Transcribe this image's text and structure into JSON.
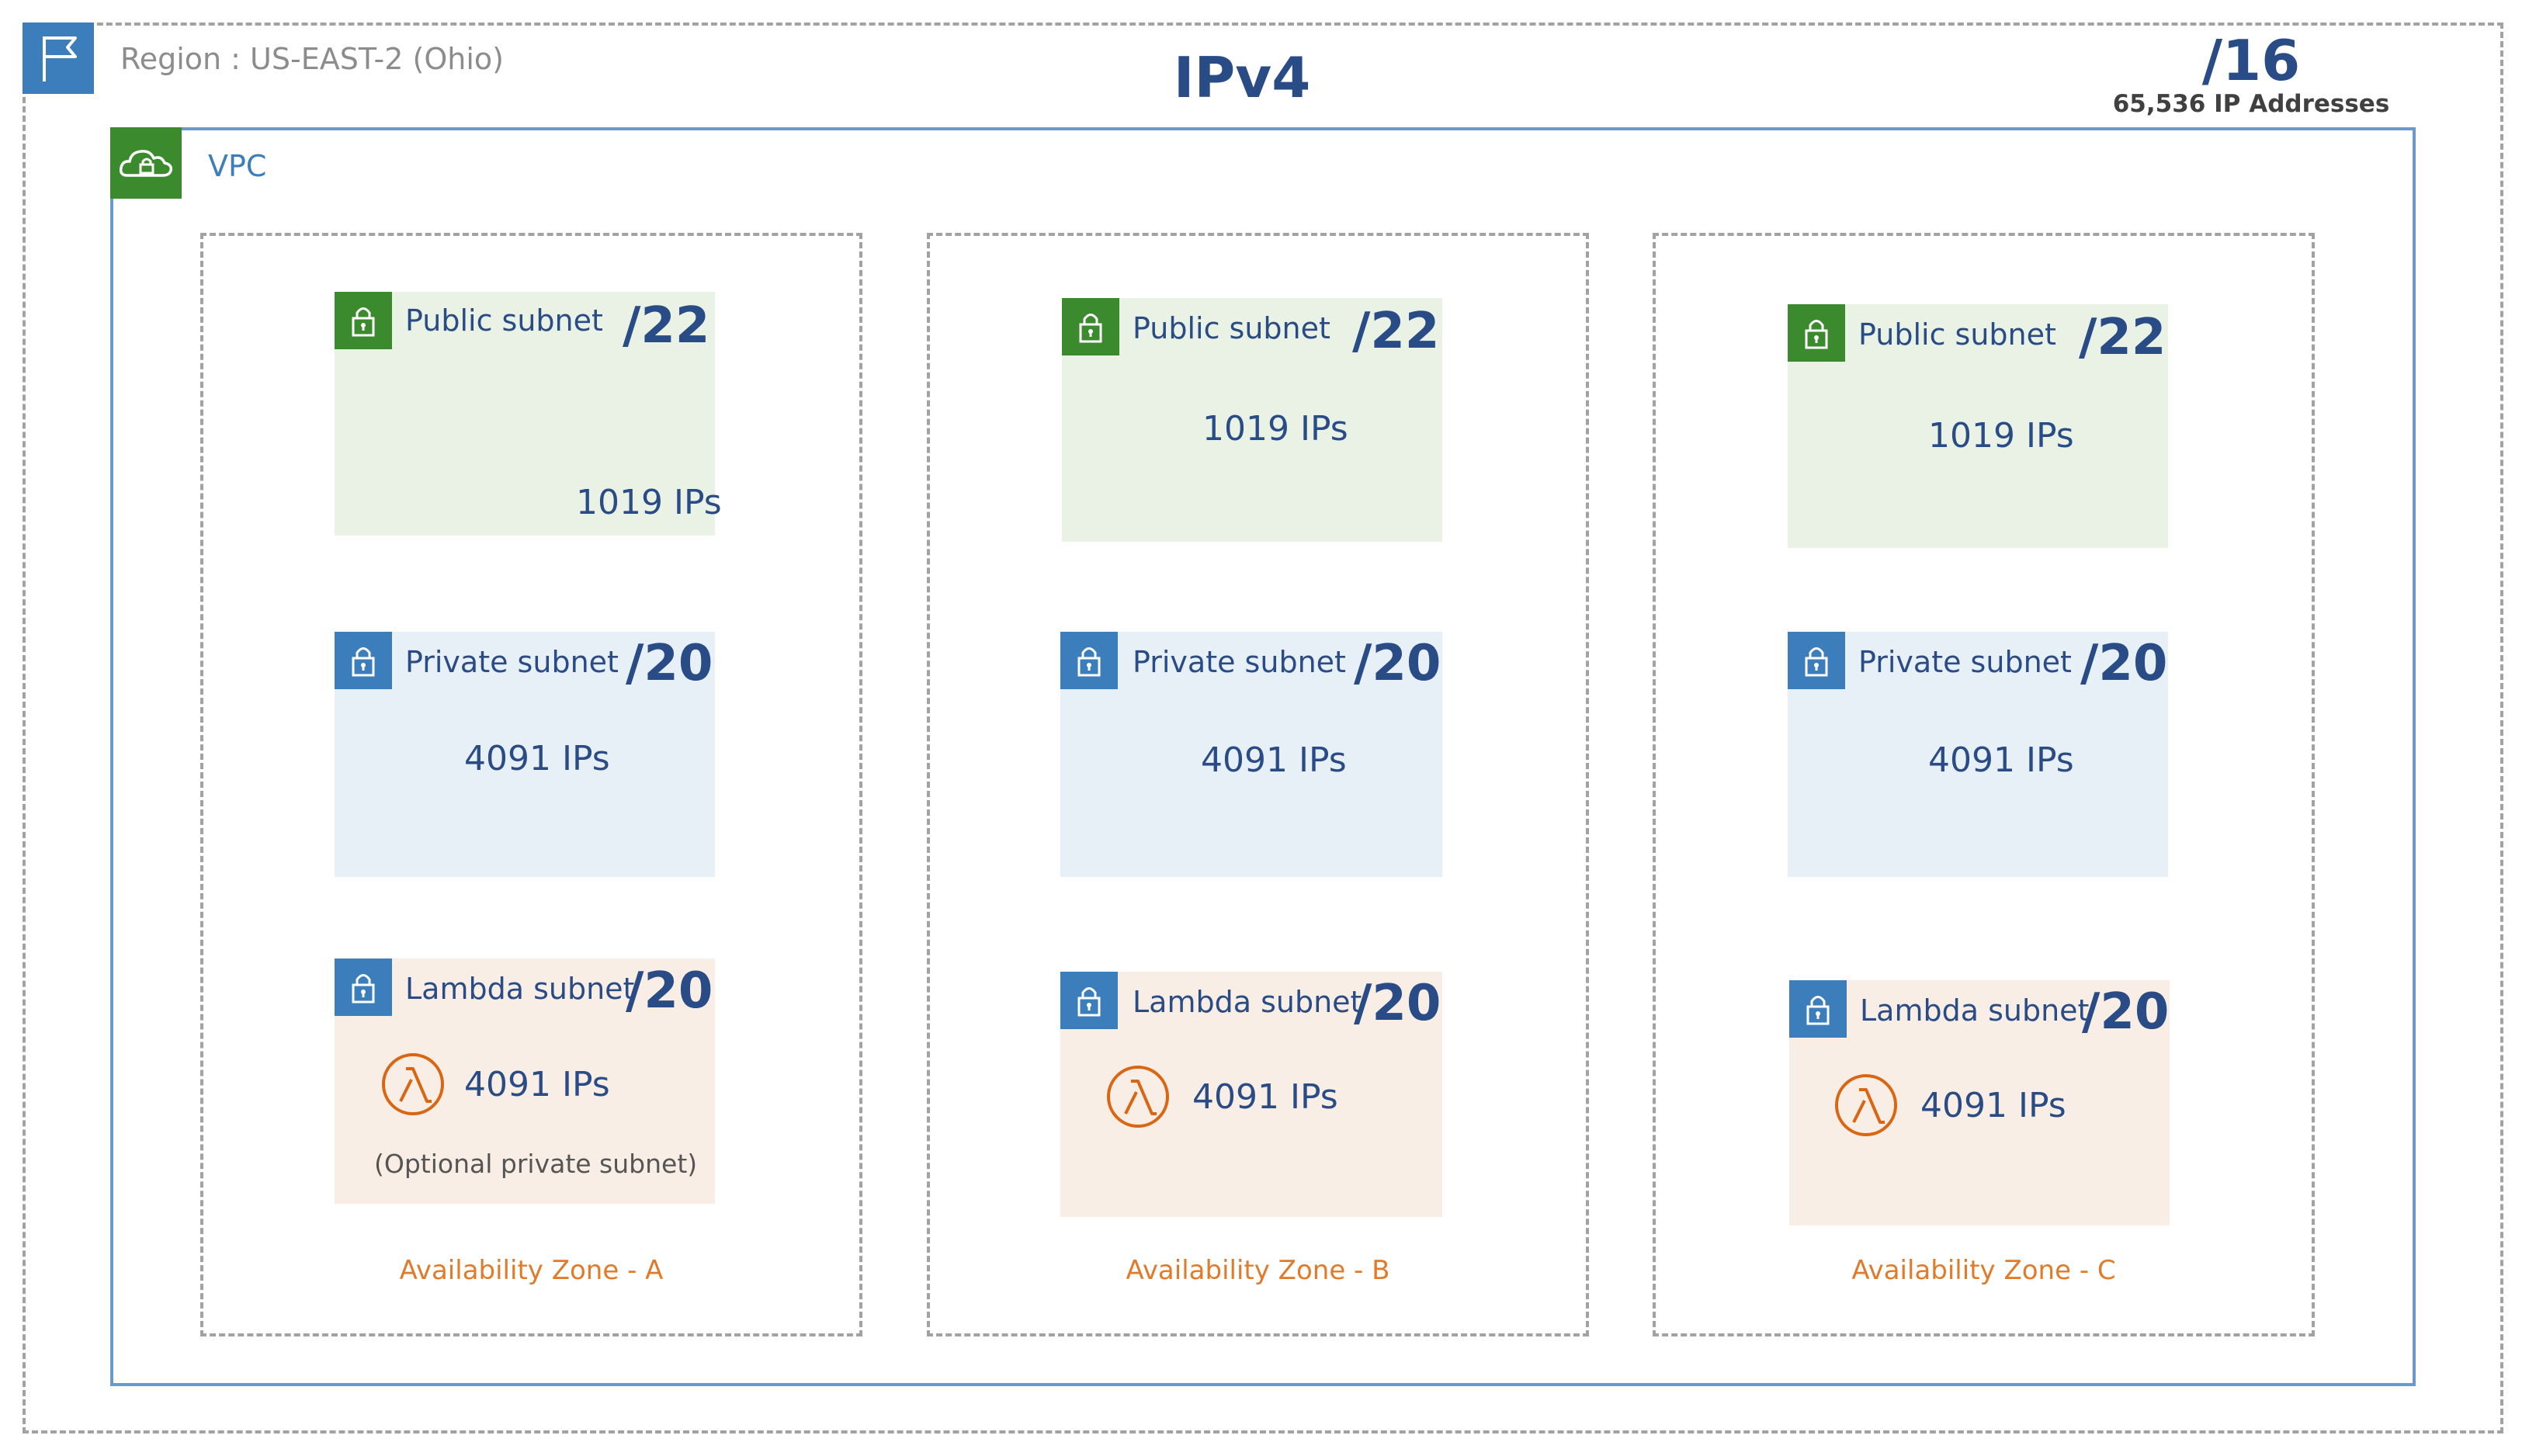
{
  "region": {
    "label": "Region : US-EAST-2 (Ohio)",
    "icon": "flag-icon"
  },
  "title": "IPv4",
  "vpc_cidr": {
    "prefix": "/16",
    "addresses": "65,536 IP Addresses"
  },
  "vpc": {
    "label": "VPC",
    "icon": "cloud-lock-icon"
  },
  "zones": [
    {
      "label": "Availability Zone - A",
      "public": {
        "name": "Public subnet",
        "cidr": "/22",
        "ips": "1019 IPs"
      },
      "private": {
        "name": "Private subnet",
        "cidr": "/20",
        "ips": "4091 IPs"
      },
      "lambda": {
        "name": "Lambda subnet",
        "cidr": "/20",
        "ips": "4091 IPs",
        "note": "(Optional private subnet)"
      }
    },
    {
      "label": "Availability Zone - B",
      "public": {
        "name": "Public subnet",
        "cidr": "/22",
        "ips": "1019 IPs"
      },
      "private": {
        "name": "Private subnet",
        "cidr": "/20",
        "ips": "4091 IPs"
      },
      "lambda": {
        "name": "Lambda subnet",
        "cidr": "/20",
        "ips": "4091 IPs"
      }
    },
    {
      "label": "Availability Zone - C",
      "public": {
        "name": "Public subnet",
        "cidr": "/22",
        "ips": "1019 IPs"
      },
      "private": {
        "name": "Private subnet",
        "cidr": "/20",
        "ips": "4091 IPs"
      },
      "lambda": {
        "name": "Lambda subnet",
        "cidr": "/20",
        "ips": "4091 IPs"
      }
    }
  ],
  "colors": {
    "public_bg": "#e9f2e4",
    "private_bg": "#e8f0f7",
    "lambda_bg": "#f9eee5",
    "heading": "#2a4c86",
    "zone_label": "#e07b2c",
    "lock_green": "#3c8a2e",
    "lock_blue": "#3c7dbb",
    "lambda_orange": "#d86613"
  }
}
